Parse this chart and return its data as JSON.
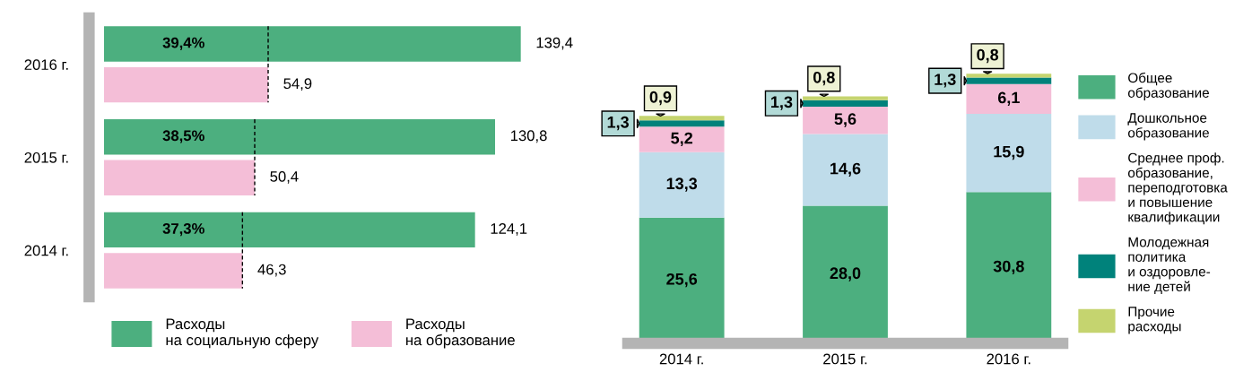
{
  "chart_data": [
    {
      "type": "bar",
      "orientation": "horizontal",
      "categories": [
        "2016 г.",
        "2015 г.",
        "2014 г."
      ],
      "series": [
        {
          "name": "Расходы\nна социальную сферу",
          "color": "#4caf7f",
          "values": [
            139.4,
            130.8,
            124.1
          ],
          "value_labels": [
            "139,4",
            "130,8",
            "124,1"
          ]
        },
        {
          "name": "Расходы\nна образование",
          "color": "#f4bed7",
          "values": [
            54.9,
            50.4,
            46.3
          ],
          "value_labels": [
            "54,9",
            "50,4",
            "46,3"
          ]
        }
      ],
      "annotations": [
        "39,4%",
        "38,5%",
        "37,3%"
      ],
      "tick_labels": "y",
      "legend": "bottom"
    },
    {
      "type": "bar",
      "stacked": true,
      "categories": [
        "2014 г.",
        "2015 г.",
        "2016 г."
      ],
      "series": [
        {
          "name": "Общее\nобразование",
          "color": "#4caf7f",
          "values": [
            25.6,
            28.0,
            30.8
          ],
          "value_labels": [
            "25,6",
            "28,0",
            "30,8"
          ]
        },
        {
          "name": "Дошкольное\nобразование",
          "color": "#bfdcea",
          "values": [
            13.3,
            14.6,
            15.9
          ],
          "value_labels": [
            "13,3",
            "14,6",
            "15,9"
          ]
        },
        {
          "name": "Среднее проф.\nобразование,\nпереподготовка\nи повышение\nквалификации",
          "color": "#f4bed7",
          "values": [
            5.2,
            5.6,
            6.1
          ],
          "value_labels": [
            "5,2",
            "5,6",
            "6,1"
          ]
        },
        {
          "name": "Молодежная\nполитика\nи оздоровле-\nние детей",
          "color": "#00827b",
          "values": [
            1.3,
            1.3,
            1.3
          ],
          "value_labels": [
            "1,3",
            "1,3",
            "1,3"
          ]
        },
        {
          "name": "Прочие\nрасходы",
          "color": "#c5d46f",
          "values": [
            0.9,
            0.8,
            0.8
          ],
          "value_labels": [
            "0,9",
            "0,8",
            "0,8"
          ]
        }
      ],
      "tick_labels": "x",
      "legend": "right"
    }
  ]
}
